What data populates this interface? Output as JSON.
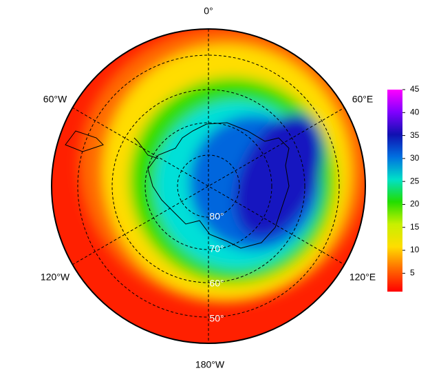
{
  "map": {
    "longitude_labels": [
      "0°",
      "60°E",
      "120°E",
      "180°W",
      "120°W",
      "60°W"
    ],
    "latitude_labels": [
      "80°",
      "70°",
      "60°",
      "50°"
    ],
    "colorbar": {
      "range": [
        1,
        45
      ],
      "ticks": [
        5,
        10,
        15,
        20,
        25,
        30,
        35,
        40,
        45
      ],
      "colors": [
        "#ff0000",
        "#ff6a00",
        "#ffdd00",
        "#c8f000",
        "#22dd00",
        "#00e0c8",
        "#0070e0",
        "#1010b0",
        "#8000ff",
        "#ff00ff"
      ]
    }
  }
}
